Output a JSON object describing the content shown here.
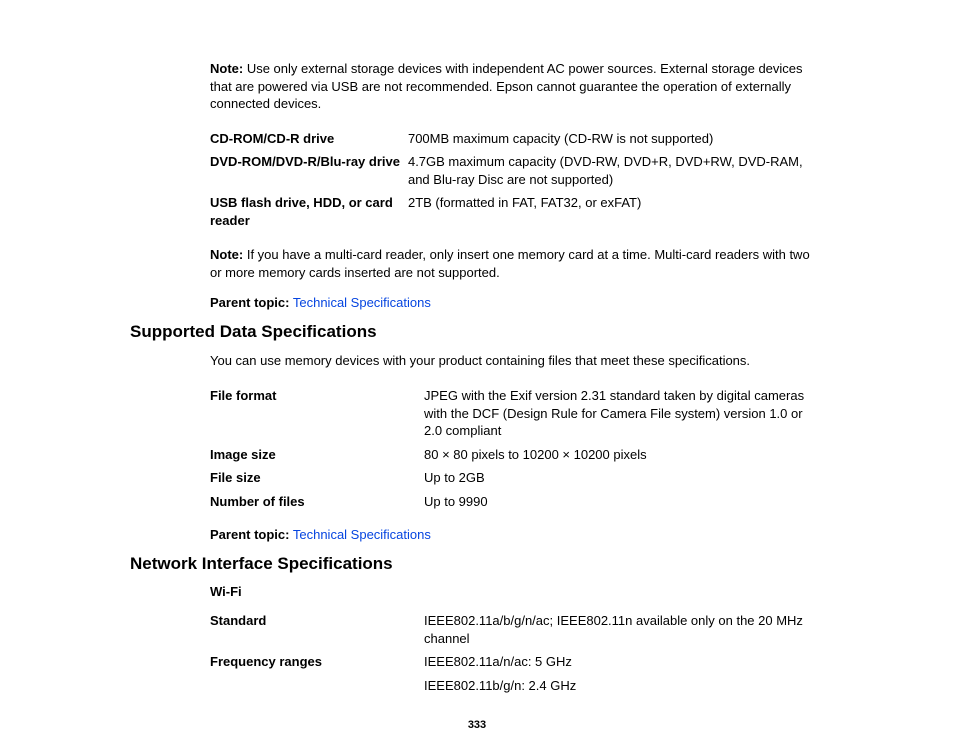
{
  "note1_label": "Note:",
  "note1_text": " Use only external storage devices with independent AC power sources. External storage devices that are powered via USB are not recommended. Epson cannot guarantee the operation of externally connected devices.",
  "table1": {
    "rows": [
      {
        "label": "CD-ROM/CD-R drive",
        "value": "700MB maximum capacity (CD-RW is not supported)"
      },
      {
        "label": "DVD-ROM/DVD-R/Blu-ray drive",
        "value": "4.7GB maximum capacity (DVD-RW, DVD+R, DVD+RW, DVD-RAM, and Blu-ray Disc are not supported)"
      },
      {
        "label": "USB flash drive, HDD, or card reader",
        "value": "2TB (formatted in FAT, FAT32, or exFAT)"
      }
    ]
  },
  "note2_label": "Note:",
  "note2_text": " If you have a multi-card reader, only insert one memory card at a time. Multi-card readers with two or more memory cards inserted are not supported.",
  "parent_label": "Parent topic:",
  "parent_link": "Technical Specifications",
  "heading1": "Supported Data Specifications",
  "intro1": "You can use memory devices with your product containing files that meet these specifications.",
  "table2": {
    "rows": [
      {
        "label": "File format",
        "value": "JPEG with the Exif version 2.31 standard taken by digital cameras with the DCF (Design Rule for Camera File system) version 1.0 or 2.0 compliant"
      },
      {
        "label": "Image size",
        "value": "80 × 80 pixels to 10200 × 10200 pixels"
      },
      {
        "label": "File size",
        "value": "Up to 2GB"
      },
      {
        "label": "Number of files",
        "value": "Up to 9990"
      }
    ]
  },
  "heading2": "Network Interface Specifications",
  "subhead_wifi": "Wi-Fi",
  "table3": {
    "rows": [
      {
        "label": "Standard",
        "value": "IEEE802.11a/b/g/n/ac; IEEE802.11n available only on the 20 MHz channel"
      },
      {
        "label": "Frequency ranges",
        "value": "IEEE802.11a/n/ac: 5 GHz"
      },
      {
        "label": "",
        "value": "IEEE802.11b/g/n: 2.4 GHz"
      }
    ]
  },
  "page_number": "333"
}
